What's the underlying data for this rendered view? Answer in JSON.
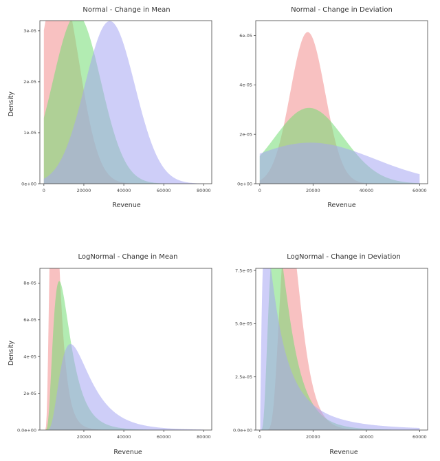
{
  "colors": {
    "red": "#f28e8e",
    "green": "#72dd72",
    "blue": "#a6a6f2"
  },
  "chart_data": [
    {
      "type": "area",
      "title": "Normal - Change in Mean",
      "xlabel": "Revenue",
      "ylabel": "Density",
      "xlim": [
        -2000,
        84000
      ],
      "ylim": [
        0,
        3.2e-05
      ],
      "x_ticks": [
        0,
        20000,
        40000,
        60000,
        80000
      ],
      "y_ticks": [
        0,
        1e-05,
        2e-05,
        3e-05
      ],
      "y_tick_labels": [
        "0e+00",
        "1e-05",
        "2e-05",
        "3e-05"
      ],
      "series": [
        {
          "color": "red",
          "dist": "normal",
          "mean": 7500,
          "sd": 10000,
          "x_range": [
            0,
            80000
          ]
        },
        {
          "color": "green",
          "dist": "normal",
          "mean": 16500,
          "sd": 12000,
          "x_range": [
            0,
            80000
          ]
        },
        {
          "color": "blue",
          "dist": "normal",
          "mean": 33000,
          "sd": 12500,
          "x_range": [
            0,
            80000
          ]
        }
      ]
    },
    {
      "type": "area",
      "title": "Normal - Change in Deviation",
      "xlabel": "Revenue",
      "ylabel": "",
      "xlim": [
        -1500,
        63000
      ],
      "ylim": [
        0,
        6.6e-05
      ],
      "x_ticks": [
        0,
        20000,
        40000,
        60000
      ],
      "y_ticks": [
        0,
        2e-05,
        4e-05,
        6e-05
      ],
      "y_tick_labels": [
        "0e+00",
        "2e-05",
        "4e-05",
        "6e-05"
      ],
      "series": [
        {
          "color": "red",
          "dist": "normal",
          "mean": 18000,
          "sd": 6500,
          "x_range": [
            0,
            60000
          ]
        },
        {
          "color": "green",
          "dist": "normal",
          "mean": 18500,
          "sd": 13000,
          "x_range": [
            0,
            60000
          ]
        },
        {
          "color": "blue",
          "dist": "normal",
          "mean": 19000,
          "sd": 24000,
          "x_range": [
            0,
            60000
          ]
        }
      ]
    },
    {
      "type": "area",
      "title": "LogNormal - Change in Mean",
      "xlabel": "Revenue",
      "ylabel": "Density",
      "xlim": [
        -2000,
        84000
      ],
      "ylim": [
        0,
        8.8e-05
      ],
      "x_ticks": [
        20000,
        40000,
        60000,
        80000
      ],
      "y_ticks": [
        0,
        2e-05,
        4e-05,
        6e-05,
        8e-05
      ],
      "y_tick_labels": [
        "0.0e+00",
        "2e-05",
        "4e-05",
        "6e-05",
        "8e-05"
      ],
      "series": [
        {
          "color": "red",
          "dist": "lognormal",
          "mu": 8.7,
          "sigma": 0.5,
          "x_range": [
            400,
            80000
          ]
        },
        {
          "color": "green",
          "dist": "lognormal",
          "mu": 9.25,
          "sigma": 0.55,
          "x_range": [
            400,
            80000
          ]
        },
        {
          "color": "blue",
          "dist": "lognormal",
          "mu": 9.8,
          "sigma": 0.55,
          "x_range": [
            400,
            80000
          ]
        }
      ]
    },
    {
      "type": "area",
      "title": "LogNormal - Change in Deviation",
      "xlabel": "Revenue",
      "ylabel": "",
      "xlim": [
        -1500,
        63000
      ],
      "ylim": [
        0,
        7.6e-05
      ],
      "x_ticks": [
        0,
        20000,
        40000,
        60000
      ],
      "y_ticks": [
        0,
        2.5e-05,
        5e-05,
        7.5e-05
      ],
      "y_tick_labels": [
        "0.0e+00",
        "2.5e-05",
        "5.0e-05",
        "7.5e-05"
      ],
      "series": [
        {
          "color": "red",
          "dist": "lognormal",
          "mu": 9.4,
          "sigma": 0.35,
          "x_range": [
            200,
            60000
          ]
        },
        {
          "color": "green",
          "dist": "lognormal",
          "mu": 9.05,
          "sigma": 0.6,
          "x_range": [
            200,
            60000
          ]
        },
        {
          "color": "blue",
          "dist": "lognormal",
          "mu": 8.9,
          "sigma": 1.1,
          "x_range": [
            200,
            60000
          ]
        }
      ]
    }
  ]
}
